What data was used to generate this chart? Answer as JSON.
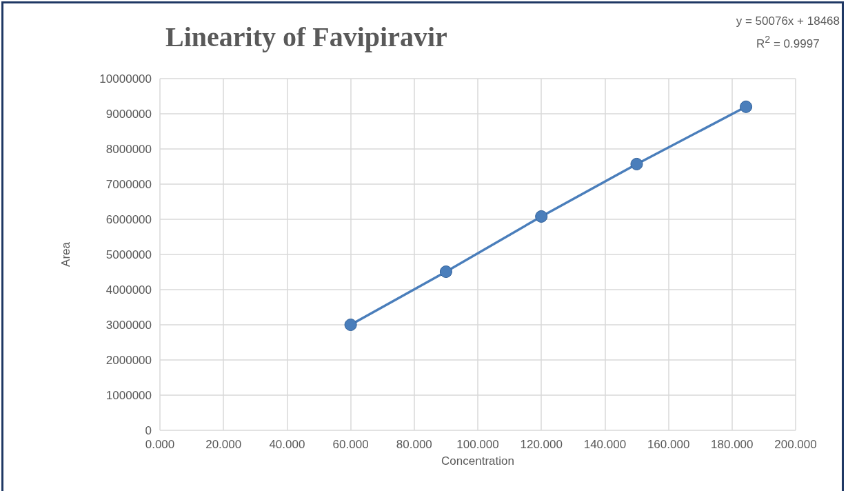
{
  "chart_data": {
    "type": "line",
    "title": "Linearity of Favipiravir",
    "xlabel": "Concentration",
    "ylabel": "Area",
    "x": [
      60,
      90,
      120,
      150,
      184.4
    ],
    "series": [
      {
        "color": "#4a7ebb",
        "values": [
          3000000,
          4510000,
          6080000,
          7570000,
          9200000
        ]
      }
    ],
    "xlim": [
      0,
      200
    ],
    "xticks": [
      {
        "value": 0,
        "label": "0.000"
      },
      {
        "value": 20,
        "label": "20.000"
      },
      {
        "value": 40,
        "label": "40.000"
      },
      {
        "value": 60,
        "label": "60.000"
      },
      {
        "value": 80,
        "label": "80.000"
      },
      {
        "value": 100,
        "label": "100.000"
      },
      {
        "value": 120,
        "label": "120.000"
      },
      {
        "value": 140,
        "label": "140.000"
      },
      {
        "value": 160,
        "label": "160.000"
      },
      {
        "value": 180,
        "label": "180.000"
      },
      {
        "value": 200,
        "label": "200.000"
      }
    ],
    "ylim": [
      0,
      10000000
    ],
    "yticks": [
      0,
      1000000,
      2000000,
      3000000,
      4000000,
      5000000,
      6000000,
      7000000,
      8000000,
      9000000,
      10000000
    ],
    "grid": true,
    "marker": "circle",
    "line_style": "solid",
    "annotations": [
      "y = 50076x + 18468",
      "R$^{2}$ = 0.9997"
    ]
  }
}
